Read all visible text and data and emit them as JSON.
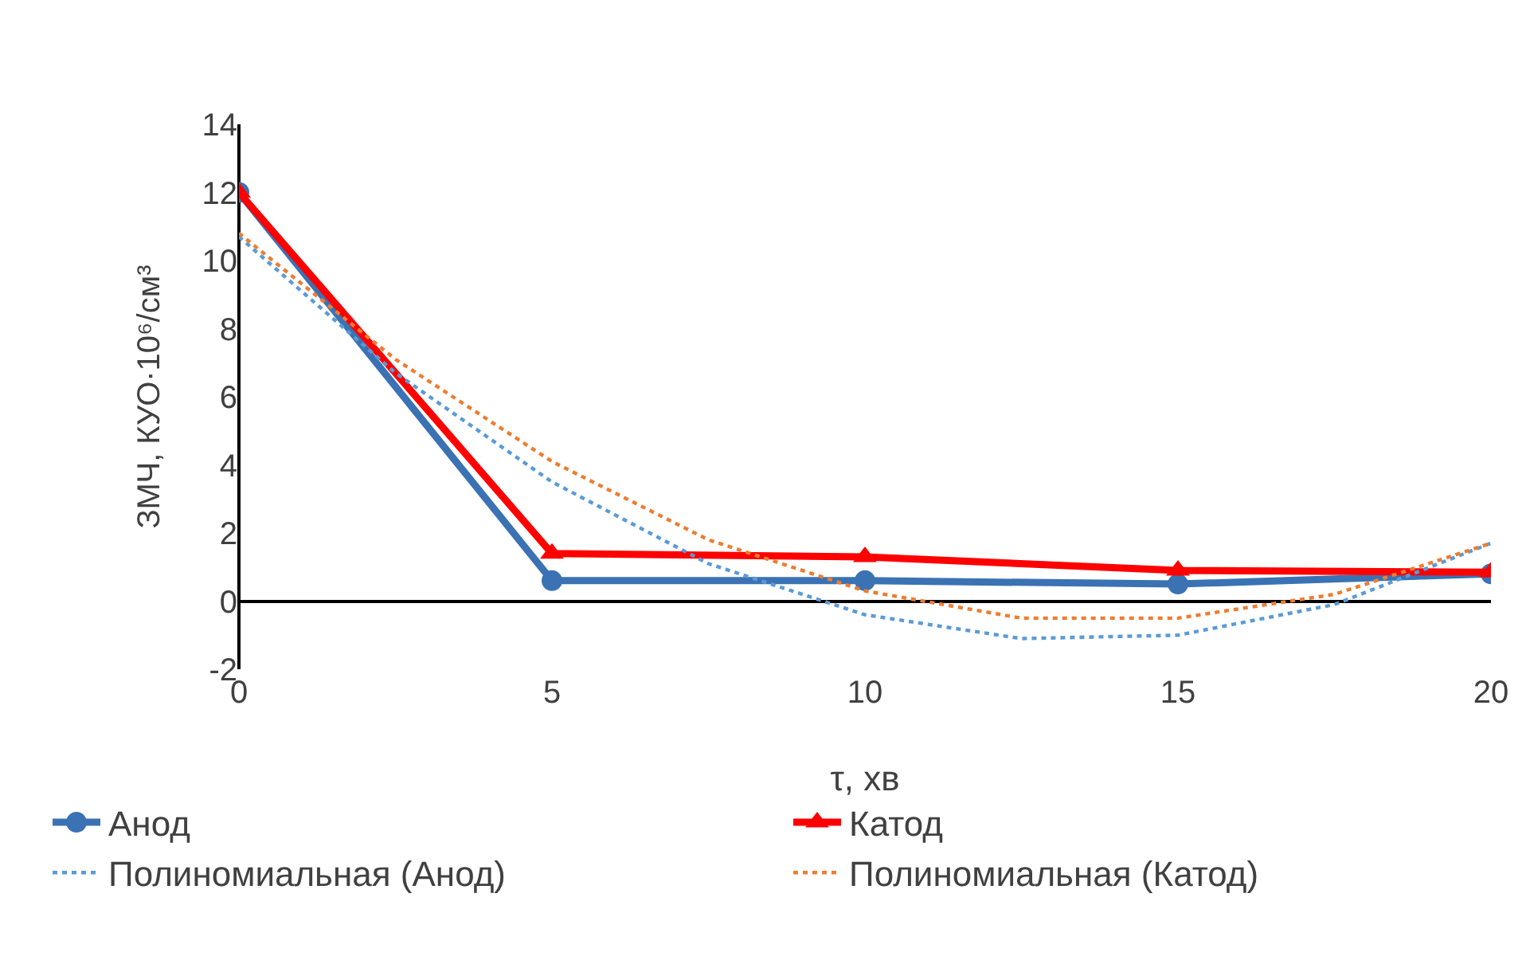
{
  "chart_data": {
    "type": "line",
    "xlabel": "τ, хв",
    "ylabel": "ЗМЧ, КУО·10⁶/см³",
    "xlim": [
      0,
      20
    ],
    "xticks": [
      0,
      5,
      10,
      15,
      20
    ],
    "ylim": [
      -2,
      14
    ],
    "yticks": [
      -2,
      0,
      2,
      4,
      6,
      8,
      10,
      12,
      14
    ],
    "grid": false,
    "legend": "bottom",
    "series": [
      {
        "name": "Анод",
        "color": "#3a72b4",
        "x": [
          0,
          5,
          10,
          15,
          20
        ],
        "values": [
          12,
          0.6,
          0.6,
          0.5,
          0.8
        ],
        "marker": "circle",
        "line_style": "solid"
      },
      {
        "name": "Катод",
        "color": "#ff0000",
        "x": [
          0,
          5,
          10,
          15,
          20
        ],
        "values": [
          12,
          1.4,
          1.3,
          0.9,
          0.85
        ],
        "marker": "triangle",
        "line_style": "solid"
      },
      {
        "name": "Полиномиальная (Анод)",
        "color": "#5b9bd5",
        "x": [
          0,
          2.5,
          5,
          7.5,
          10,
          12.5,
          15,
          17.5,
          20
        ],
        "values": [
          10.7,
          6.7,
          3.5,
          1.1,
          -0.4,
          -1.1,
          -1.0,
          -0.1,
          1.7
        ],
        "marker": "none",
        "line_style": "dotted"
      },
      {
        "name": "Полиномиальная (Катод)",
        "color": "#ed7d31",
        "x": [
          0,
          2.5,
          5,
          7.5,
          10,
          12.5,
          15,
          17.5,
          20
        ],
        "values": [
          10.8,
          7.1,
          4.1,
          1.8,
          0.3,
          -0.5,
          -0.5,
          0.2,
          1.7
        ],
        "marker": "none",
        "line_style": "dotted"
      }
    ]
  }
}
